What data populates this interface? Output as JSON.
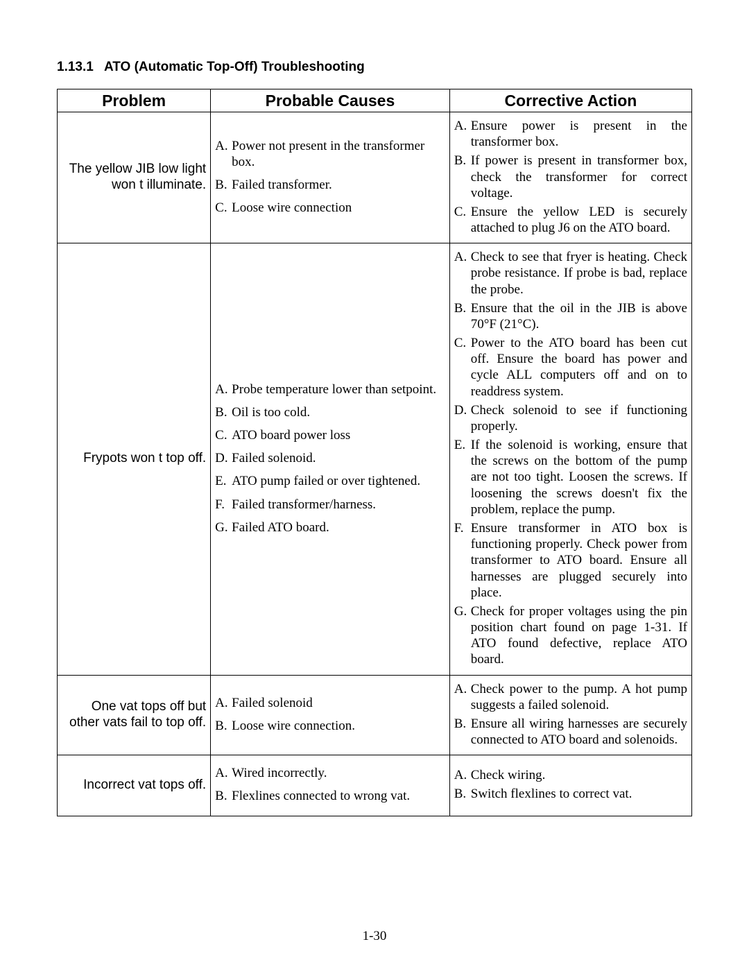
{
  "section_number": "1.13.1",
  "section_title": "ATO (Automatic Top-Off) Troubleshooting",
  "page_number": "1-30",
  "headers": {
    "problem": "Problem",
    "causes": "Probable Causes",
    "actions": "Corrective Action"
  },
  "rows": [
    {
      "problem": "The yellow JIB low light won t illuminate.",
      "causes": [
        {
          "m": "A.",
          "t": "Power not present in the transformer box."
        },
        {
          "m": "B.",
          "t": "Failed transformer."
        },
        {
          "m": "C.",
          "t": "Loose wire connection"
        }
      ],
      "causes_spaced": true,
      "actions": [
        {
          "m": "A.",
          "t": "Ensure power is present in the transformer box."
        },
        {
          "m": "B.",
          "t": "If power is present in transformer box, check the transformer for correct voltage."
        },
        {
          "m": "C.",
          "t": "Ensure the yellow LED is securely attached to plug J6 on the ATO board."
        }
      ]
    },
    {
      "problem": "Frypots won t top off.",
      "causes": [
        {
          "m": "A.",
          "t": "Probe temperature lower than setpoint."
        },
        {
          "m": "B.",
          "t": "Oil is too cold."
        },
        {
          "m": "C.",
          "t": "ATO board power loss"
        },
        {
          "m": "D.",
          "t": "Failed solenoid."
        },
        {
          "m": "E.",
          "t": "ATO pump failed or over tightened."
        },
        {
          "m": "F.",
          "t": "Failed transformer/harness."
        },
        {
          "m": "G.",
          "t": "Failed ATO board."
        }
      ],
      "causes_spaced": true,
      "actions": [
        {
          "m": "A.",
          "t": "Check to see that fryer is heating.  Check probe resistance.  If probe is bad, replace the probe."
        },
        {
          "m": "B.",
          "t": "Ensure that the oil in the JIB is above 70°F (21°C)."
        },
        {
          "m": "C.",
          "t": "Power to the ATO board has been cut off.  Ensure the board has power and cycle ALL  computers off and on to readdress system."
        },
        {
          "m": "D.",
          "t": "Check solenoid to see if functioning properly."
        },
        {
          "m": "E.",
          "t": "If the solenoid is working, ensure that the screws on the bottom of the pump are not too tight.  Loosen the screws.  If loosening the screws doesn't fix the problem, replace the pump."
        },
        {
          "m": "F.",
          "t": "Ensure transformer in ATO box is functioning properly.  Check power from transformer to ATO board.  Ensure all harnesses are plugged securely into place."
        },
        {
          "m": "G.",
          "t": "Check for proper voltages using the pin position chart found on page 1-31. If ATO found defective, replace ATO board."
        }
      ]
    },
    {
      "problem": "One vat tops off but other vats fail to top off.",
      "causes": [
        {
          "m": "A.",
          "t": "Failed solenoid"
        },
        {
          "m": "B.",
          "t": "Loose wire connection."
        }
      ],
      "causes_spaced": true,
      "actions": [
        {
          "m": "A.",
          "t": "Check power to the pump. A hot pump suggests a failed solenoid."
        },
        {
          "m": "B.",
          "t": "Ensure all wiring harnesses are securely connected to ATO board and solenoids."
        }
      ]
    },
    {
      "problem": "Incorrect vat tops off.",
      "causes": [
        {
          "m": "A.",
          "t": "Wired incorrectly."
        },
        {
          "m": "B.",
          "t": "Flexlines connected to wrong vat."
        }
      ],
      "causes_spaced": true,
      "actions": [
        {
          "m": "A.",
          "t": "Check wiring."
        },
        {
          "m": "B.",
          "t": "Switch flexlines to correct vat."
        }
      ]
    }
  ]
}
